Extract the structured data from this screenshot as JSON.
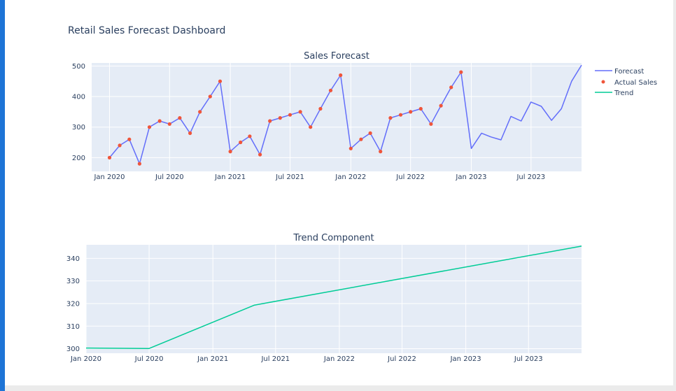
{
  "dashboard_title": "Retail Sales Forecast Dashboard",
  "colors": {
    "forecast": "#636efa",
    "actual": "#ef553b",
    "trend": "#00cc96",
    "plot_bg": "#e5ecf6",
    "accent_bar": "#1e74d6"
  },
  "legend": {
    "forecast": "Forecast",
    "actual": "Actual Sales",
    "trend": "Trend"
  },
  "chart_data": [
    {
      "type": "line",
      "title": "Sales Forecast",
      "xlabel": "",
      "ylabel": "",
      "x_range": [
        "2019-11-08",
        "2023-12-01"
      ],
      "ylim": [
        155,
        510
      ],
      "x_ticks": [
        {
          "date": "2020-01-01",
          "label": "Jan 2020"
        },
        {
          "date": "2020-07-01",
          "label": "Jul 2020"
        },
        {
          "date": "2021-01-01",
          "label": "Jan 2021"
        },
        {
          "date": "2021-07-01",
          "label": "Jul 2021"
        },
        {
          "date": "2022-01-01",
          "label": "Jan 2022"
        },
        {
          "date": "2022-07-01",
          "label": "Jul 2022"
        },
        {
          "date": "2023-01-01",
          "label": "Jan 2023"
        },
        {
          "date": "2023-07-01",
          "label": "Jul 2023"
        }
      ],
      "y_ticks": [
        200,
        300,
        400,
        500
      ],
      "legend_position": "top-right",
      "grid": true,
      "series": [
        {
          "name": "Forecast",
          "mode": "lines",
          "x": [
            "2020-01-01",
            "2020-02-01",
            "2020-03-01",
            "2020-04-01",
            "2020-05-01",
            "2020-06-01",
            "2020-07-01",
            "2020-08-01",
            "2020-09-01",
            "2020-10-01",
            "2020-11-01",
            "2020-12-01",
            "2021-01-01",
            "2021-02-01",
            "2021-03-01",
            "2021-04-01",
            "2021-05-01",
            "2021-06-01",
            "2021-07-01",
            "2021-08-01",
            "2021-09-01",
            "2021-10-01",
            "2021-11-01",
            "2021-12-01",
            "2022-01-01",
            "2022-02-01",
            "2022-03-01",
            "2022-04-01",
            "2022-05-01",
            "2022-06-01",
            "2022-07-01",
            "2022-08-01",
            "2022-09-01",
            "2022-10-01",
            "2022-11-01",
            "2022-12-01",
            "2023-01-01",
            "2023-02-01",
            "2023-03-01",
            "2023-04-01",
            "2023-05-01",
            "2023-06-01",
            "2023-07-01",
            "2023-08-01",
            "2023-09-01",
            "2023-10-01",
            "2023-11-01",
            "2023-12-01"
          ],
          "y": [
            200,
            240,
            260,
            180,
            300,
            320,
            310,
            330,
            280,
            350,
            400,
            450,
            220,
            250,
            270,
            210,
            320,
            330,
            340,
            350,
            300,
            360,
            420,
            470,
            230,
            260,
            280,
            220,
            330,
            340,
            350,
            360,
            310,
            370,
            430,
            480,
            230,
            280,
            268,
            258,
            335,
            320,
            382,
            368,
            322,
            360,
            450,
            503
          ]
        },
        {
          "name": "Actual Sales",
          "mode": "markers",
          "x": [
            "2020-01-01",
            "2020-02-01",
            "2020-03-01",
            "2020-04-01",
            "2020-05-01",
            "2020-06-01",
            "2020-07-01",
            "2020-08-01",
            "2020-09-01",
            "2020-10-01",
            "2020-11-01",
            "2020-12-01",
            "2021-01-01",
            "2021-02-01",
            "2021-03-01",
            "2021-04-01",
            "2021-05-01",
            "2021-06-01",
            "2021-07-01",
            "2021-08-01",
            "2021-09-01",
            "2021-10-01",
            "2021-11-01",
            "2021-12-01",
            "2022-01-01",
            "2022-02-01",
            "2022-03-01",
            "2022-04-01",
            "2022-05-01",
            "2022-06-01",
            "2022-07-01",
            "2022-08-01",
            "2022-09-01",
            "2022-10-01",
            "2022-11-01",
            "2022-12-01"
          ],
          "y": [
            200,
            240,
            260,
            180,
            300,
            320,
            310,
            330,
            280,
            350,
            400,
            450,
            220,
            250,
            270,
            210,
            320,
            330,
            340,
            350,
            300,
            360,
            420,
            470,
            230,
            260,
            280,
            220,
            330,
            340,
            350,
            360,
            310,
            370,
            430,
            480
          ]
        }
      ]
    },
    {
      "type": "line",
      "title": "Trend Component",
      "xlabel": "",
      "ylabel": "",
      "x_range": [
        "2020-01-01",
        "2023-12-01"
      ],
      "ylim": [
        298,
        346
      ],
      "x_ticks": [
        {
          "date": "2020-01-01",
          "label": "Jan 2020"
        },
        {
          "date": "2020-07-01",
          "label": "Jul 2020"
        },
        {
          "date": "2021-01-01",
          "label": "Jan 2021"
        },
        {
          "date": "2021-07-01",
          "label": "Jul 2021"
        },
        {
          "date": "2022-01-01",
          "label": "Jan 2022"
        },
        {
          "date": "2022-07-01",
          "label": "Jul 2022"
        },
        {
          "date": "2023-01-01",
          "label": "Jan 2023"
        },
        {
          "date": "2023-07-01",
          "label": "Jul 2023"
        }
      ],
      "y_ticks": [
        300,
        310,
        320,
        330,
        340
      ],
      "grid": true,
      "series": [
        {
          "name": "Trend",
          "mode": "lines",
          "x": [
            "2020-01-01",
            "2020-07-01",
            "2021-05-01",
            "2023-12-01"
          ],
          "y": [
            300.3,
            300.1,
            319.3,
            345.4
          ]
        }
      ]
    }
  ]
}
